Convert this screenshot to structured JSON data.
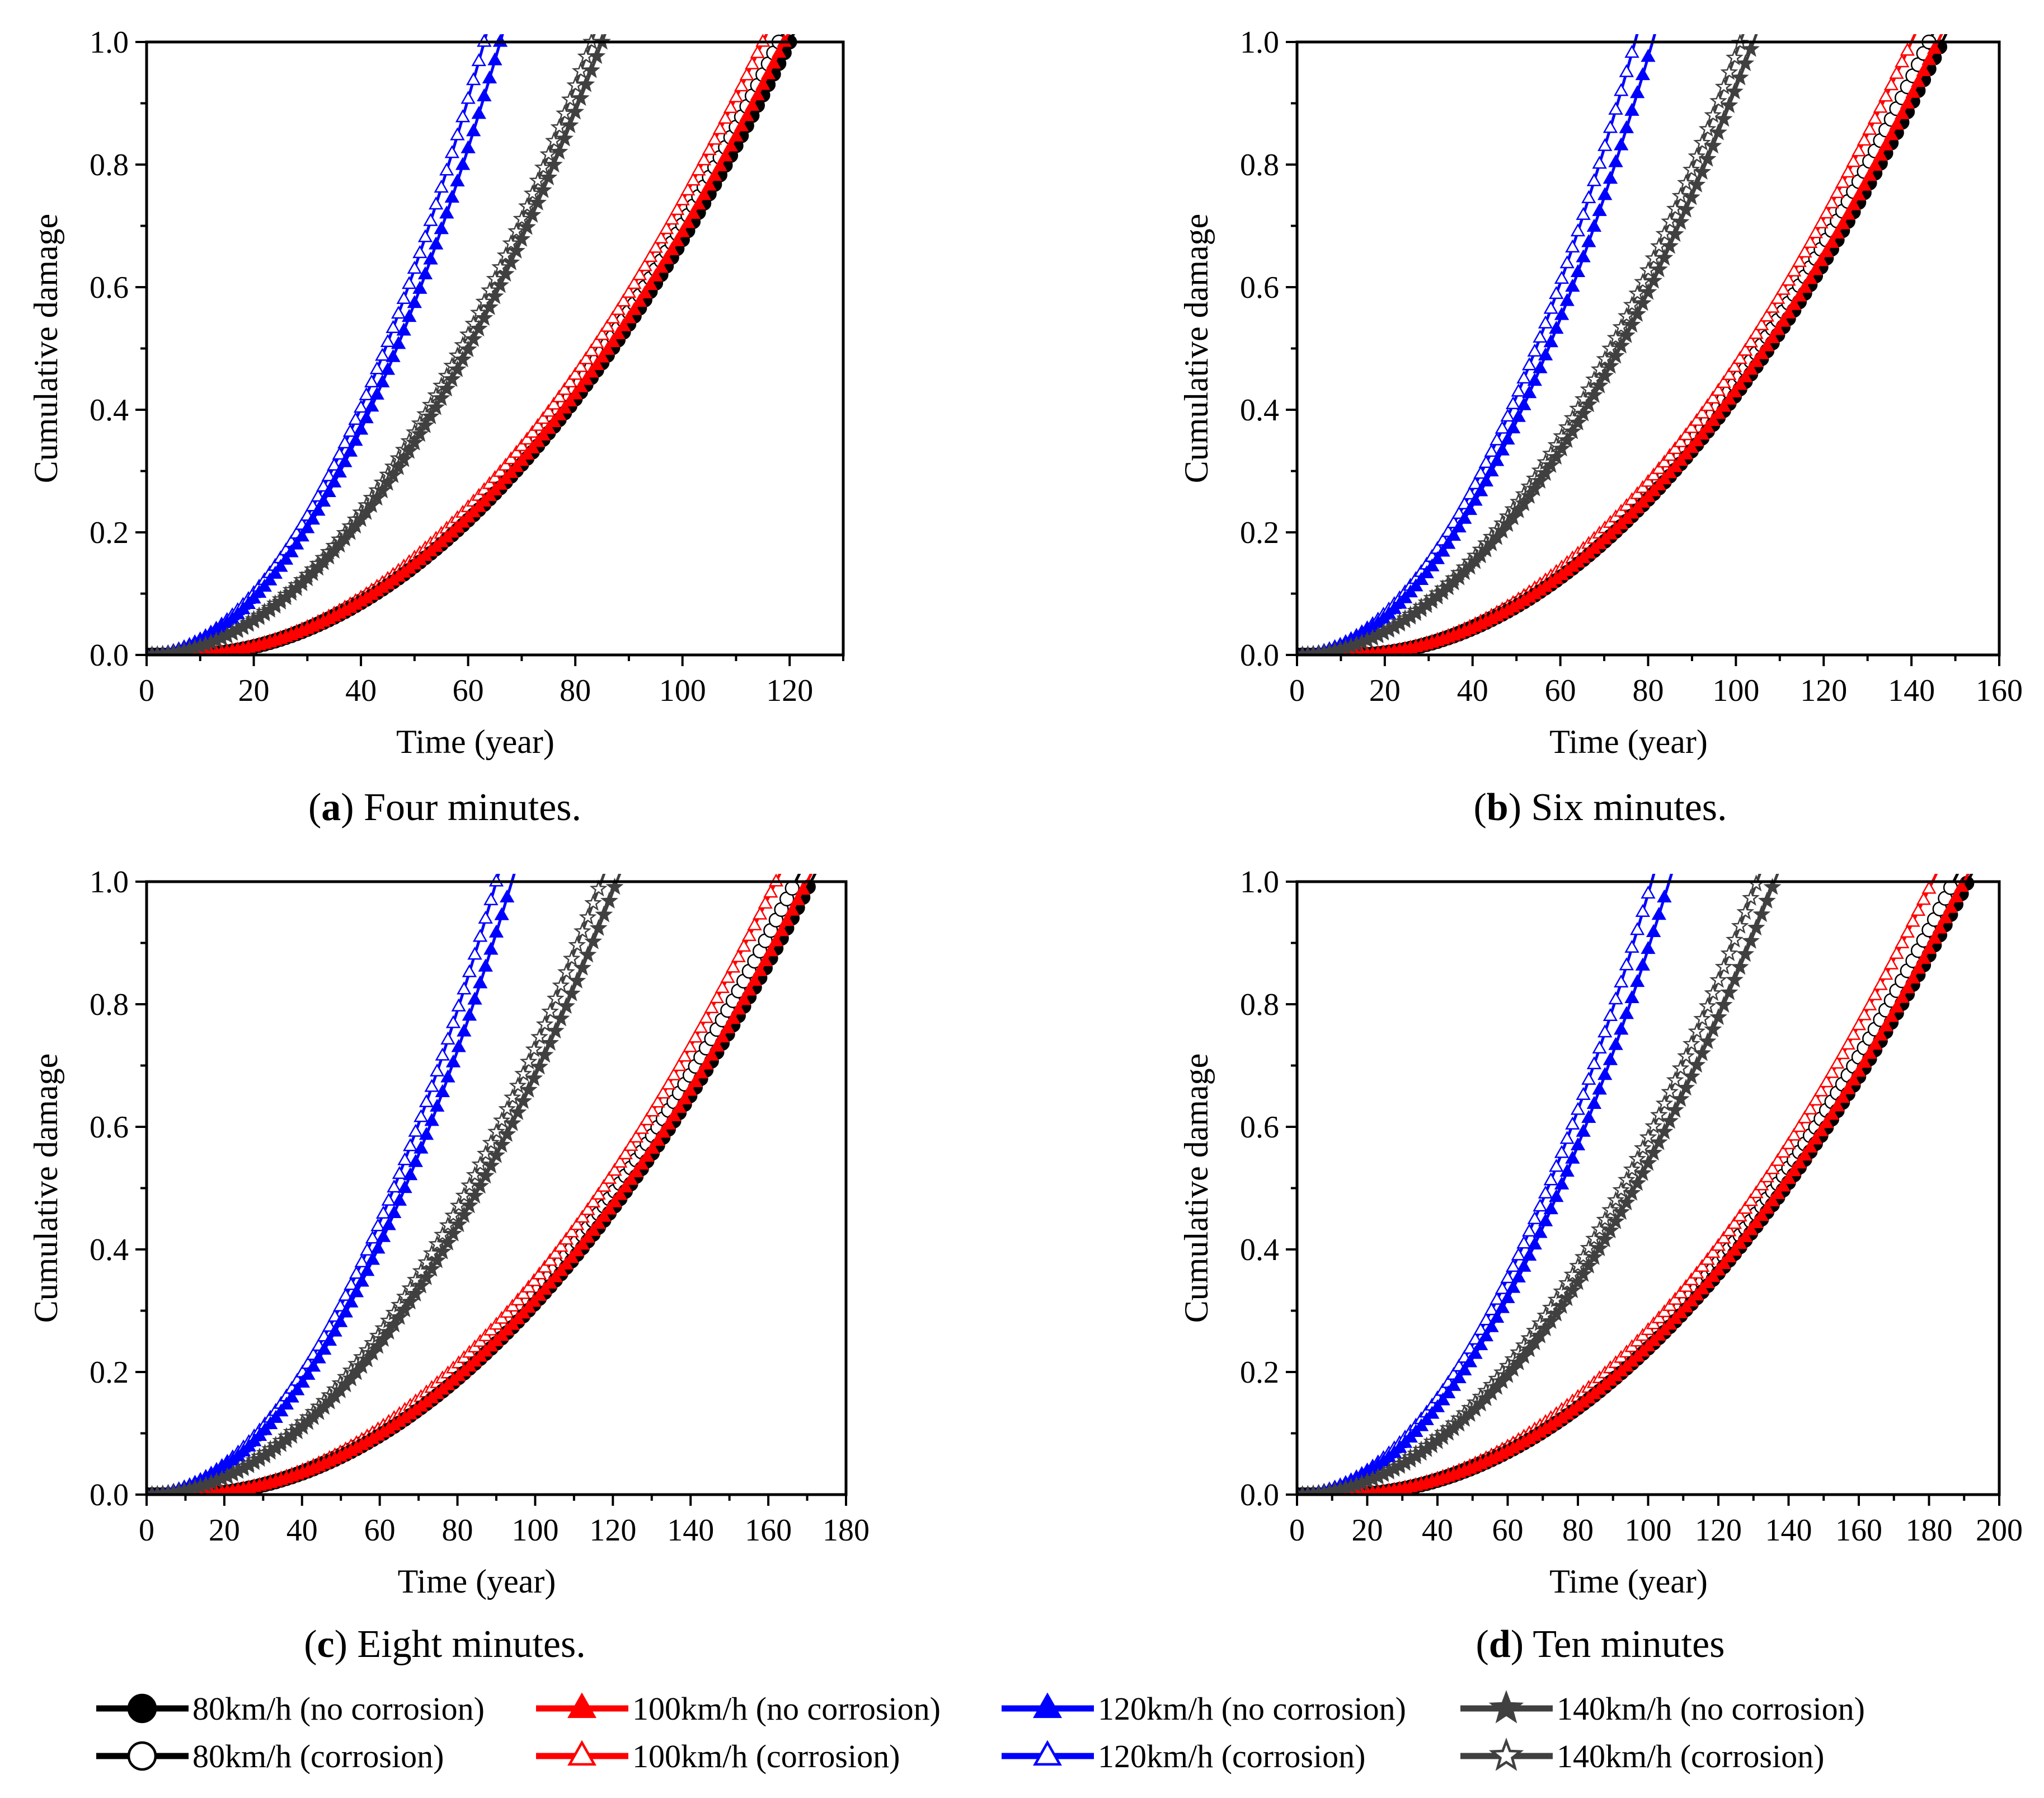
{
  "figure": {
    "legend": [
      {
        "label": "80km/h (no corrosion)",
        "color": "#000000",
        "marker": "circle",
        "filled": true
      },
      {
        "label": "100km/h (no corrosion)",
        "color": "#ff0000",
        "marker": "triangle",
        "filled": true
      },
      {
        "label": "120km/h (no corrosion)",
        "color": "#0000ff",
        "marker": "triangle",
        "filled": true
      },
      {
        "label": "140km/h (no corrosion)",
        "color": "#404040",
        "marker": "star",
        "filled": true
      },
      {
        "label": "80km/h (corrosion)",
        "color": "#000000",
        "marker": "circle",
        "filled": false
      },
      {
        "label": "100km/h (corrosion)",
        "color": "#ff0000",
        "marker": "triangle",
        "filled": false
      },
      {
        "label": "120km/h (corrosion)",
        "color": "#0000ff",
        "marker": "triangle",
        "filled": false
      },
      {
        "label": "140km/h (corrosion)",
        "color": "#404040",
        "marker": "star",
        "filled": false
      }
    ]
  },
  "chart_data": [
    {
      "type": "line",
      "caption_letter": "a",
      "caption_text": " Four minutes.",
      "xlabel": "Time (year)",
      "ylabel": "Cumulative damage",
      "xlim": [
        0,
        130
      ],
      "ylim": [
        0,
        1.0
      ],
      "xticks": [
        "0",
        "20",
        "40",
        "60",
        "80",
        "100",
        "120"
      ],
      "xtick_values": [
        0,
        20,
        40,
        60,
        80,
        100,
        120
      ],
      "yticks": [
        "0.0",
        "0.2",
        "0.4",
        "0.6",
        "0.8",
        "1.0"
      ],
      "ytick_values": [
        0,
        0.2,
        0.4,
        0.6,
        0.8,
        1.0
      ],
      "series": [
        {
          "name": "80km/h (no corrosion)",
          "start": 7,
          "end": 120
        },
        {
          "name": "100km/h (no corrosion)",
          "start": 7,
          "end": 119
        },
        {
          "name": "120km/h (no corrosion)",
          "start": 0,
          "end": 66
        },
        {
          "name": "140km/h (no corrosion)",
          "start": 0,
          "end": 85
        },
        {
          "name": "80km/h (corrosion)",
          "start": 7,
          "end": 118
        },
        {
          "name": "100km/h (corrosion)",
          "start": 7,
          "end": 115
        },
        {
          "name": "120km/h (corrosion)",
          "start": 0,
          "end": 63
        },
        {
          "name": "140km/h (corrosion)",
          "start": 0,
          "end": 83
        }
      ]
    },
    {
      "type": "line",
      "caption_letter": "b",
      "caption_text": " Six minutes.",
      "xlabel": "Time (year)",
      "ylabel": "Cumulative damage",
      "xlim": [
        0,
        160
      ],
      "ylim": [
        0,
        1.0
      ],
      "xticks": [
        "0",
        "20",
        "40",
        "60",
        "80",
        "100",
        "120",
        "140",
        "160"
      ],
      "xtick_values": [
        0,
        20,
        40,
        60,
        80,
        100,
        120,
        140,
        160
      ],
      "yticks": [
        "0.0",
        "0.2",
        "0.4",
        "0.6",
        "0.8",
        "1.0"
      ],
      "ytick_values": [
        0,
        0.2,
        0.4,
        0.6,
        0.8,
        1.0
      ],
      "series": [
        {
          "name": "80km/h (no corrosion)",
          "start": 12,
          "end": 147
        },
        {
          "name": "100km/h (no corrosion)",
          "start": 12,
          "end": 146
        },
        {
          "name": "120km/h (no corrosion)",
          "start": 0,
          "end": 81
        },
        {
          "name": "140km/h (no corrosion)",
          "start": 0,
          "end": 104
        },
        {
          "name": "80km/h (corrosion)",
          "start": 12,
          "end": 144
        },
        {
          "name": "100km/h (corrosion)",
          "start": 12,
          "end": 140
        },
        {
          "name": "120km/h (corrosion)",
          "start": 0,
          "end": 77
        },
        {
          "name": "140km/h (corrosion)",
          "start": 0,
          "end": 101
        }
      ]
    },
    {
      "type": "line",
      "caption_letter": "c",
      "caption_text": " Eight minutes.",
      "xlabel": "Time (year)",
      "ylabel": "Cumulative damage",
      "xlim": [
        0,
        180
      ],
      "ylim": [
        0,
        1.0
      ],
      "xticks": [
        "0",
        "20",
        "40",
        "60",
        "80",
        "100",
        "120",
        "140",
        "160",
        "180"
      ],
      "xtick_values": [
        0,
        20,
        40,
        60,
        80,
        100,
        120,
        140,
        160,
        180
      ],
      "yticks": [
        "0.0",
        "0.2",
        "0.4",
        "0.6",
        "0.8",
        "1.0"
      ],
      "ytick_values": [
        0,
        0.2,
        0.4,
        0.6,
        0.8,
        1.0
      ],
      "series": [
        {
          "name": "80km/h (no corrosion)",
          "start": 10,
          "end": 171
        },
        {
          "name": "100km/h (no corrosion)",
          "start": 10,
          "end": 170
        },
        {
          "name": "120km/h (no corrosion)",
          "start": 0,
          "end": 94
        },
        {
          "name": "140km/h (no corrosion)",
          "start": 0,
          "end": 121
        },
        {
          "name": "80km/h (corrosion)",
          "start": 10,
          "end": 167
        },
        {
          "name": "100km/h (corrosion)",
          "start": 10,
          "end": 162
        },
        {
          "name": "120km/h (corrosion)",
          "start": 0,
          "end": 90
        },
        {
          "name": "140km/h (corrosion)",
          "start": 0,
          "end": 117
        }
      ]
    },
    {
      "type": "line",
      "caption_letter": "d",
      "caption_text": " Ten minutes",
      "xlabel": "Time (year)",
      "ylabel": "Cumulative damage",
      "xlim": [
        0,
        200
      ],
      "ylim": [
        0,
        1.0
      ],
      "xticks": [
        "0",
        "20",
        "40",
        "60",
        "80",
        "100",
        "120",
        "140",
        "160",
        "180",
        "200"
      ],
      "xtick_values": [
        0,
        20,
        40,
        60,
        80,
        100,
        120,
        140,
        160,
        180,
        200
      ],
      "yticks": [
        "0.0",
        "0.2",
        "0.4",
        "0.6",
        "0.8",
        "1.0"
      ],
      "ytick_values": [
        0,
        0.2,
        0.4,
        0.6,
        0.8,
        1.0
      ],
      "series": [
        {
          "name": "80km/h (no corrosion)",
          "start": 13,
          "end": 191
        },
        {
          "name": "100km/h (no corrosion)",
          "start": 13,
          "end": 190
        },
        {
          "name": "120km/h (no corrosion)",
          "start": 0,
          "end": 106
        },
        {
          "name": "140km/h (no corrosion)",
          "start": 0,
          "end": 136
        },
        {
          "name": "80km/h (corrosion)",
          "start": 13,
          "end": 187
        },
        {
          "name": "100km/h (corrosion)",
          "start": 13,
          "end": 181
        },
        {
          "name": "120km/h (corrosion)",
          "start": 0,
          "end": 101
        },
        {
          "name": "140km/h (corrosion)",
          "start": 0,
          "end": 131
        }
      ]
    }
  ]
}
